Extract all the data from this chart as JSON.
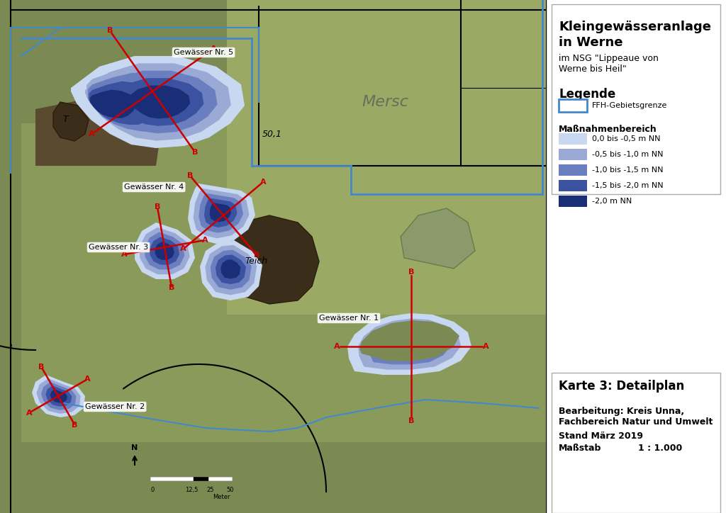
{
  "title_box1_line1": "Kleingewässeranlage",
  "title_box1_line2": "in Werne",
  "title_box1_sub": "im NSG \"Lippeaue von\nWerne bis Heil\"",
  "legend_title": "Legende",
  "ffh_label": "FFH-Gebietsgrenze",
  "massnahmen_title": "Maßnahmenbereich",
  "depth_colors": [
    "#c8d8f0",
    "#9baad4",
    "#6b7fc0",
    "#3a52a0",
    "#1a2e78"
  ],
  "depth_labels": [
    "0,0 bis -0,5 m NN",
    "-0,5 bis -1,0 m NN",
    "-1,0 bis -1,5 m NN",
    "-1,5 bis -2,0 m NN",
    "-2,0 m NN"
  ],
  "karte_title": "Karte 3: Detailplan",
  "bearbeitung": "Bearbeitung: Kreis Unna,\nFachbereich Natur und Umwelt",
  "stand": "Stand März 2019",
  "massstab_label": "Maßstab",
  "massstab_value": "1 : 1.000",
  "bg_map_color": "#6b7a4a",
  "water_labels": [
    "Gewässer Nr. 5",
    "Gewässer Nr. 4",
    "Gewässer Nr. 3",
    "Gewässer Nr. 2",
    "Gewässer Nr. 1"
  ],
  "text_50_1": "50,1",
  "text_mersc": "Mersc",
  "text_teich": "Teich",
  "text_T": "T",
  "ffh_border_color": "#4488cc",
  "red_line_color": "#cc0000",
  "scale_bar_text": "0    12,5   25           50\n                                      Meter",
  "north_text": "N"
}
